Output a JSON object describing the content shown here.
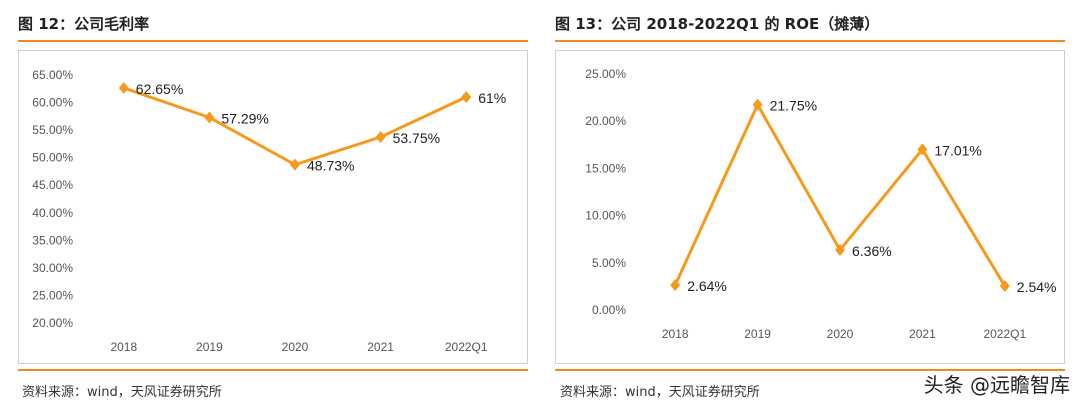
{
  "left": {
    "title": "图 12：公司毛利率",
    "source": "资料来源：wind，天风证券研究所"
  },
  "right": {
    "title": "图 13：公司 2018-2022Q1 的 ROE（摊薄）",
    "source": "资料来源：wind，天风证券研究所"
  },
  "watermark": "头条 @远瞻智库",
  "colors": {
    "accent": "#f08a1c",
    "line": "#f59a1b"
  },
  "chart_data": [
    {
      "type": "line",
      "title": "公司毛利率",
      "categories": [
        "2018",
        "2019",
        "2020",
        "2021",
        "2022Q1"
      ],
      "values": [
        62.65,
        57.29,
        48.73,
        53.75,
        61
      ],
      "data_labels": [
        "62.65%",
        "57.29%",
        "48.73%",
        "53.75%",
        "61%"
      ],
      "yticks": [
        "20.00%",
        "25.00%",
        "30.00%",
        "35.00%",
        "40.00%",
        "45.00%",
        "50.00%",
        "55.00%",
        "60.00%",
        "65.00%"
      ],
      "ylim": [
        20,
        65
      ],
      "xlabel": "",
      "ylabel": "",
      "grid": false,
      "legend": "none"
    },
    {
      "type": "line",
      "title": "公司 2018-2022Q1 的 ROE（摊薄）",
      "categories": [
        "2018",
        "2019",
        "2020",
        "2021",
        "2022Q1"
      ],
      "values": [
        2.64,
        21.75,
        6.36,
        17.01,
        2.54
      ],
      "data_labels": [
        "2.64%",
        "21.75%",
        "6.36%",
        "17.01%",
        "2.54%"
      ],
      "yticks": [
        "0.00%",
        "5.00%",
        "10.00%",
        "15.00%",
        "20.00%",
        "25.00%"
      ],
      "ylim": [
        0,
        25
      ],
      "xlabel": "",
      "ylabel": "",
      "grid": false,
      "legend": "none"
    }
  ]
}
